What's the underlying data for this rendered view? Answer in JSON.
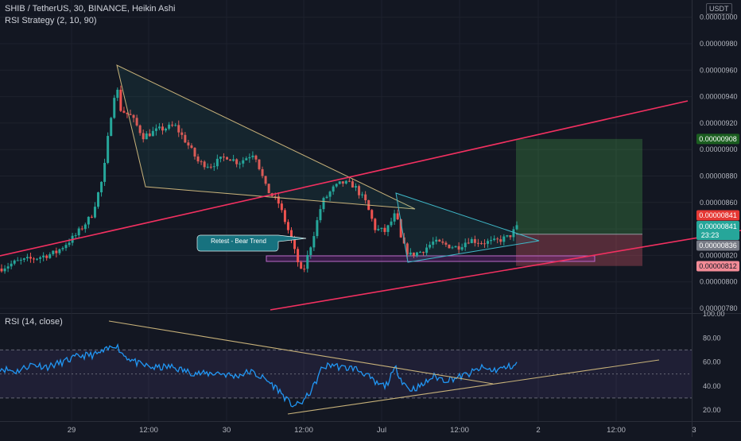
{
  "header": {
    "title": "SHIB / TetherUS, 30, BINANCE, Heikin Ashi",
    "strategy": "RSI Strategy (2, 10, 90)",
    "currency": "USDT"
  },
  "rsi_panel": {
    "title": "RSI (14, close)"
  },
  "annotation": {
    "label": "Retest - Bear Trend"
  },
  "price_badges": {
    "target": "0.00000908",
    "high": "0.00000841",
    "current": "0.00000841",
    "countdown": "23:23",
    "entry": "0.00000836",
    "stop": "0.00000812"
  },
  "colors": {
    "background": "#131722",
    "up": "#26a69a",
    "down": "#ef5350",
    "channel": "#f23060",
    "rsi": "#2196f3",
    "trendline": "#c8b27a",
    "target_zone": "#4caf50",
    "stop_zone": "#e05a6a",
    "callout": "#17727f"
  },
  "chart_data": [
    {
      "type": "candlestick",
      "series_style": "Heikin Ashi",
      "symbol": "SHIB / TetherUS",
      "interval": "30",
      "exchange": "BINANCE",
      "y_ticks": [
        "0.00001000",
        "0.00000980",
        "0.00000960",
        "0.00000940",
        "0.00000920",
        "0.00000900",
        "0.00000880",
        "0.00000860",
        "0.00000840",
        "0.00000820",
        "0.00000800",
        "0.00000780"
      ],
      "ylim": [
        7.8e-06,
        1e-05
      ],
      "x_ticks": [
        "29",
        "12:00",
        "30",
        "12:00",
        "Jul",
        "12:00",
        "2",
        "12:00",
        "3"
      ],
      "grid": true,
      "summary": {
        "high": 9.63e-06,
        "low": 7.99e-06,
        "last": 8.41e-06
      },
      "annotations": [
        "Retest - Bear Trend"
      ]
    },
    {
      "type": "line",
      "name": "RSI (14, close)",
      "y_ticks": [
        "100.00",
        "80.00",
        "60.00",
        "40.00",
        "20.00"
      ],
      "ylim": [
        10,
        100
      ],
      "bands": [
        30,
        50,
        70
      ],
      "x_ticks": [
        "29",
        "12:00",
        "30",
        "12:00",
        "Jul",
        "12:00",
        "2",
        "12:00",
        "3"
      ]
    }
  ]
}
